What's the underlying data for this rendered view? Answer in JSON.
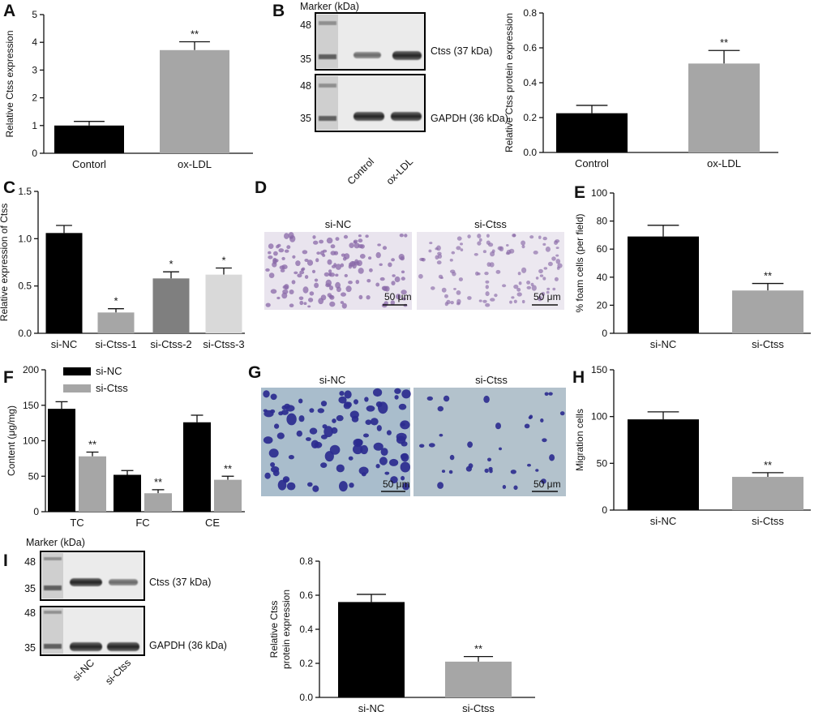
{
  "colors": {
    "black_bar": "#000000",
    "gray_bar": "#a6a6a6",
    "dark_gray_bar": "#7f7f7f",
    "light_gray_bar": "#d9d9d9",
    "he_stain": "#8a6aa8",
    "transwell_stain": "#2b2b8f"
  },
  "panels": {
    "A": {
      "letter": "A"
    },
    "B": {
      "letter": "B",
      "marker": "Marker (kDa)",
      "mw_top": [
        "48",
        "35"
      ],
      "mw_bottom": [
        "48",
        "35"
      ],
      "band_top": "Ctss (37 kDa)",
      "band_bottom": "GAPDH (36 kDa)",
      "lanes": [
        "Control",
        "ox-LDL"
      ]
    },
    "C": {
      "letter": "C"
    },
    "D": {
      "letter": "D",
      "left_label": "si-NC",
      "right_label": "si-Ctss",
      "scale_left": "50 μm",
      "scale_right": "50 μm"
    },
    "E": {
      "letter": "E"
    },
    "F": {
      "letter": "F"
    },
    "G": {
      "letter": "G",
      "left_label": "si-NC",
      "right_label": "si-Ctss",
      "scale_left": "50 μm",
      "scale_right": "50 μm"
    },
    "H": {
      "letter": "H"
    },
    "I": {
      "letter": "I",
      "marker": "Marker (kDa)",
      "mw_top": [
        "48",
        "35"
      ],
      "mw_bottom": [
        "48",
        "35"
      ],
      "band_top": "Ctss (37 kDa)",
      "band_bottom": "GAPDH (36 kDa)",
      "lanes": [
        "si-NC",
        "si-Ctss"
      ]
    }
  },
  "chart_data": [
    {
      "id": "A",
      "type": "bar",
      "categories": [
        "Contorl",
        "ox-LDL"
      ],
      "values": [
        1.0,
        3.72
      ],
      "errors": [
        0.15,
        0.3
      ],
      "sig": [
        "",
        "**"
      ],
      "ylabel": "Relative Ctss expression",
      "ylim": [
        0,
        5
      ],
      "yticks": [
        "0",
        "1",
        "2",
        "3",
        "4",
        "5"
      ],
      "bar_colors": [
        "black_bar",
        "gray_bar"
      ]
    },
    {
      "id": "B",
      "type": "bar",
      "categories": [
        "Control",
        "ox-LDL"
      ],
      "values": [
        0.225,
        0.51
      ],
      "errors": [
        0.045,
        0.075
      ],
      "sig": [
        "",
        "**"
      ],
      "ylabel": "Relative Ctss protein expression",
      "ylim": [
        0,
        0.8
      ],
      "yticks": [
        "0.0",
        "0.2",
        "0.4",
        "0.6",
        "0.8"
      ],
      "bar_colors": [
        "black_bar",
        "gray_bar"
      ]
    },
    {
      "id": "C",
      "type": "bar",
      "categories": [
        "si-NC",
        "si-Ctss-1",
        "si-Ctss-2",
        "si-Ctss-3"
      ],
      "values": [
        1.06,
        0.22,
        0.58,
        0.62
      ],
      "errors": [
        0.08,
        0.04,
        0.07,
        0.07
      ],
      "sig": [
        "",
        "*",
        "*",
        "*"
      ],
      "ylabel": "Relative expression of Ctss",
      "ylim": [
        0,
        1.5
      ],
      "yticks": [
        "0.0",
        "0.5",
        "1.0",
        "1.5"
      ],
      "bar_colors": [
        "black_bar",
        "gray_bar",
        "dark_gray_bar",
        "light_gray_bar"
      ]
    },
    {
      "id": "E",
      "type": "bar",
      "categories": [
        "si-NC",
        "si-Ctss"
      ],
      "values": [
        69,
        30.5
      ],
      "errors": [
        8,
        5
      ],
      "sig": [
        "",
        "**"
      ],
      "ylabel": "% foam cells (per field)",
      "ylim": [
        0,
        100
      ],
      "yticks": [
        "0",
        "20",
        "40",
        "60",
        "80",
        "100"
      ],
      "bar_colors": [
        "black_bar",
        "gray_bar"
      ]
    },
    {
      "id": "F",
      "type": "bar",
      "categories": [
        "TC",
        "FC",
        "CE"
      ],
      "series": [
        {
          "name": "si-NC",
          "values": [
            145,
            52,
            126
          ],
          "errors": [
            10,
            6,
            10
          ],
          "sig": [
            "",
            "",
            ""
          ],
          "color": "black_bar"
        },
        {
          "name": "si-Ctss",
          "values": [
            78,
            26,
            45
          ],
          "errors": [
            6,
            5,
            5
          ],
          "sig": [
            "**",
            "**",
            "**"
          ],
          "color": "gray_bar"
        }
      ],
      "ylabel": "Content (μg/mg)",
      "ylim": [
        0,
        200
      ],
      "yticks": [
        "0",
        "50",
        "100",
        "150",
        "200"
      ],
      "legend": "top-left"
    },
    {
      "id": "H",
      "type": "bar",
      "categories": [
        "si-NC",
        "si-Ctss"
      ],
      "values": [
        97,
        35.5
      ],
      "errors": [
        8,
        4.5
      ],
      "sig": [
        "",
        "**"
      ],
      "ylabel": "Migration cells",
      "ylim": [
        0,
        150
      ],
      "yticks": [
        "0",
        "50",
        "100",
        "150"
      ],
      "bar_colors": [
        "black_bar",
        "gray_bar"
      ]
    },
    {
      "id": "I",
      "type": "bar",
      "categories": [
        "si-NC",
        "si-Ctss"
      ],
      "values": [
        0.56,
        0.21
      ],
      "errors": [
        0.045,
        0.03
      ],
      "sig": [
        "",
        "**"
      ],
      "ylabel": [
        "Relative Ctss",
        "protein expression"
      ],
      "ylim": [
        0,
        0.8
      ],
      "yticks": [
        "0.0",
        "0.2",
        "0.4",
        "0.6",
        "0.8"
      ],
      "bar_colors": [
        "black_bar",
        "gray_bar"
      ]
    }
  ]
}
